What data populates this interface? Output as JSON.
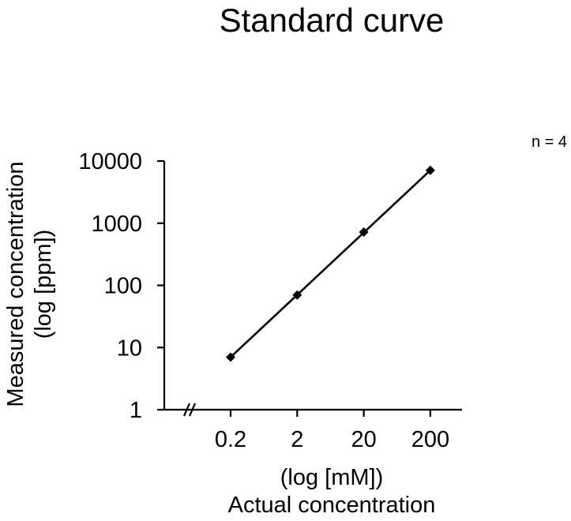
{
  "chart_data": {
    "type": "line",
    "title": "Standard curve",
    "annotation": "n = 4",
    "xlabel_line1": "(log [mM])",
    "xlabel_line2": "Actual concentration",
    "ylabel_line1": "Measured concentration",
    "ylabel_line2": "(log [ppm])",
    "x_scale": "log",
    "y_scale": "log",
    "x_ticks": [
      0.2,
      2,
      20,
      200
    ],
    "x_tick_labels": [
      "0.2",
      "2",
      "20",
      "200"
    ],
    "y_ticks": [
      1,
      10,
      100,
      1000,
      10000
    ],
    "y_tick_labels": [
      "1",
      "10",
      "100",
      "1000",
      "10000"
    ],
    "x_axis_break": true,
    "ylim": [
      1,
      10000
    ],
    "series": [
      {
        "name": "Measured",
        "marker": "diamond",
        "color": "#000000",
        "x": [
          0.2,
          2,
          20,
          200
        ],
        "y": [
          7,
          70,
          720,
          7100
        ]
      }
    ]
  }
}
